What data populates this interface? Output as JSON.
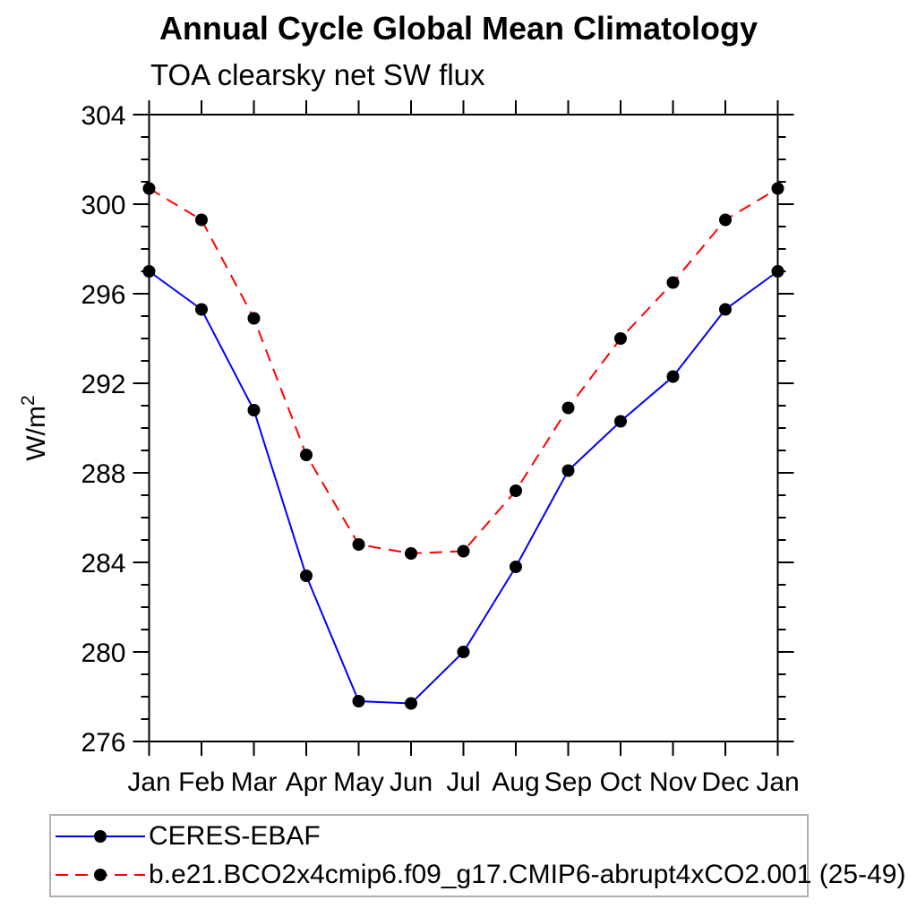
{
  "header": {
    "title": "Annual Cycle Global Mean Climatology",
    "subtitle": "TOA clearsky net SW flux"
  },
  "chart_data": {
    "type": "line",
    "title": "Annual Cycle Global Mean Climatology",
    "subtitle": "TOA clearsky net SW flux",
    "xlabel": "",
    "ylabel": "W/m²",
    "x_categories": [
      "Jan",
      "Feb",
      "Mar",
      "Apr",
      "May",
      "Jun",
      "Jul",
      "Aug",
      "Sep",
      "Oct",
      "Nov",
      "Dec",
      "Jan"
    ],
    "ylim": [
      276,
      304
    ],
    "y_major_ticks": [
      276,
      280,
      284,
      288,
      292,
      296,
      300,
      304
    ],
    "y_minor_step": 1,
    "grid": false,
    "tick_direction": "out",
    "legend_position": "bottom-left-box",
    "axis_color": "#000000",
    "marker": "filled-circle",
    "marker_color": "#000000",
    "series": [
      {
        "name": "CERES-EBAF",
        "color": "#0000ff",
        "line_style": "solid",
        "values": [
          297.0,
          295.3,
          290.8,
          283.4,
          277.8,
          277.7,
          280.0,
          283.8,
          288.1,
          290.3,
          292.3,
          295.3,
          297.0
        ]
      },
      {
        "name": "b.e21.BCO2x4cmip6.f09_g17.CMIP6-abrupt4xCO2.001 (25-49)",
        "color": "#ff0000",
        "line_style": "dashed",
        "values": [
          300.7,
          299.3,
          294.9,
          288.8,
          284.8,
          284.4,
          284.5,
          287.2,
          290.9,
          294.0,
          296.5,
          299.3,
          300.7
        ]
      }
    ]
  }
}
